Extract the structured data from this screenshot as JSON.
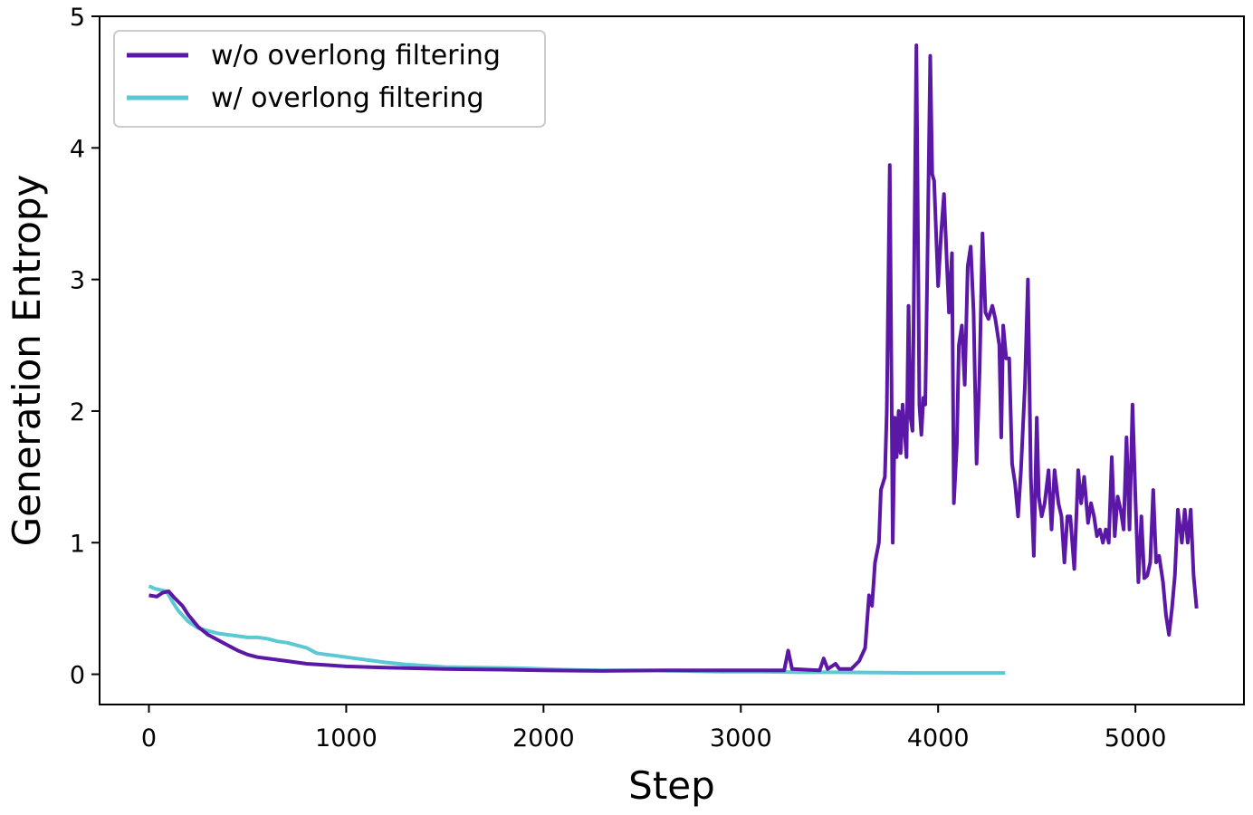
{
  "chart_data": {
    "type": "line",
    "title": "",
    "xlabel": "Step",
    "ylabel": "Generation Entropy",
    "xlim": [
      -250,
      5550
    ],
    "ylim": [
      -0.23,
      5.0
    ],
    "xticks": [
      0,
      1000,
      2000,
      3000,
      4000,
      5000
    ],
    "yticks": [
      0,
      1,
      2,
      3,
      4,
      5
    ],
    "grid": false,
    "legend_position": "top-left",
    "series": [
      {
        "name": "w/o overlong filtering",
        "color": "#5b17a6",
        "points": [
          [
            0,
            0.6
          ],
          [
            40,
            0.59
          ],
          [
            70,
            0.62
          ],
          [
            100,
            0.63
          ],
          [
            130,
            0.58
          ],
          [
            170,
            0.52
          ],
          [
            200,
            0.45
          ],
          [
            250,
            0.36
          ],
          [
            300,
            0.3
          ],
          [
            350,
            0.26
          ],
          [
            400,
            0.22
          ],
          [
            450,
            0.18
          ],
          [
            500,
            0.15
          ],
          [
            550,
            0.13
          ],
          [
            600,
            0.12
          ],
          [
            700,
            0.1
          ],
          [
            800,
            0.08
          ],
          [
            900,
            0.07
          ],
          [
            1000,
            0.06
          ],
          [
            1200,
            0.05
          ],
          [
            1500,
            0.04
          ],
          [
            1800,
            0.035
          ],
          [
            2000,
            0.03
          ],
          [
            2300,
            0.025
          ],
          [
            2600,
            0.03
          ],
          [
            2900,
            0.03
          ],
          [
            3100,
            0.03
          ],
          [
            3220,
            0.03
          ],
          [
            3240,
            0.18
          ],
          [
            3260,
            0.04
          ],
          [
            3400,
            0.03
          ],
          [
            3420,
            0.12
          ],
          [
            3440,
            0.04
          ],
          [
            3480,
            0.08
          ],
          [
            3500,
            0.04
          ],
          [
            3560,
            0.04
          ],
          [
            3600,
            0.1
          ],
          [
            3630,
            0.2
          ],
          [
            3650,
            0.6
          ],
          [
            3665,
            0.52
          ],
          [
            3680,
            0.85
          ],
          [
            3700,
            1.0
          ],
          [
            3710,
            1.4
          ],
          [
            3730,
            1.5
          ],
          [
            3740,
            2.0
          ],
          [
            3755,
            3.87
          ],
          [
            3770,
            1.0
          ],
          [
            3780,
            1.95
          ],
          [
            3790,
            1.65
          ],
          [
            3800,
            2.0
          ],
          [
            3810,
            1.68
          ],
          [
            3820,
            2.05
          ],
          [
            3840,
            1.65
          ],
          [
            3850,
            2.8
          ],
          [
            3860,
            1.95
          ],
          [
            3870,
            1.85
          ],
          [
            3890,
            4.78
          ],
          [
            3905,
            2.05
          ],
          [
            3915,
            1.82
          ],
          [
            3925,
            2.1
          ],
          [
            3935,
            2.05
          ],
          [
            3945,
            3.05
          ],
          [
            3960,
            4.7
          ],
          [
            3970,
            3.8
          ],
          [
            3980,
            3.75
          ],
          [
            4000,
            2.95
          ],
          [
            4015,
            3.35
          ],
          [
            4030,
            3.65
          ],
          [
            4045,
            3.1
          ],
          [
            4055,
            2.75
          ],
          [
            4070,
            3.2
          ],
          [
            4080,
            1.3
          ],
          [
            4095,
            1.75
          ],
          [
            4105,
            2.5
          ],
          [
            4120,
            2.65
          ],
          [
            4135,
            2.2
          ],
          [
            4150,
            3.1
          ],
          [
            4165,
            3.25
          ],
          [
            4180,
            2.75
          ],
          [
            4195,
            1.6
          ],
          [
            4210,
            2.3
          ],
          [
            4225,
            3.35
          ],
          [
            4240,
            2.75
          ],
          [
            4255,
            2.7
          ],
          [
            4275,
            2.8
          ],
          [
            4290,
            2.7
          ],
          [
            4310,
            2.5
          ],
          [
            4320,
            1.8
          ],
          [
            4330,
            2.65
          ],
          [
            4345,
            2.4
          ],
          [
            4360,
            2.4
          ],
          [
            4375,
            1.6
          ],
          [
            4390,
            1.45
          ],
          [
            4405,
            1.2
          ],
          [
            4420,
            1.55
          ],
          [
            4440,
            2.2
          ],
          [
            4455,
            3.0
          ],
          [
            4470,
            1.5
          ],
          [
            4485,
            0.9
          ],
          [
            4500,
            1.95
          ],
          [
            4510,
            1.35
          ],
          [
            4525,
            1.2
          ],
          [
            4540,
            1.3
          ],
          [
            4560,
            1.55
          ],
          [
            4575,
            1.1
          ],
          [
            4590,
            1.55
          ],
          [
            4610,
            1.3
          ],
          [
            4625,
            1.2
          ],
          [
            4640,
            0.85
          ],
          [
            4655,
            1.2
          ],
          [
            4670,
            1.2
          ],
          [
            4690,
            0.8
          ],
          [
            4710,
            1.55
          ],
          [
            4725,
            1.3
          ],
          [
            4740,
            1.5
          ],
          [
            4760,
            1.15
          ],
          [
            4775,
            1.3
          ],
          [
            4790,
            1.2
          ],
          [
            4805,
            1.05
          ],
          [
            4820,
            1.1
          ],
          [
            4835,
            1.0
          ],
          [
            4850,
            1.1
          ],
          [
            4865,
            1.0
          ],
          [
            4880,
            1.65
          ],
          [
            4895,
            1.05
          ],
          [
            4910,
            1.35
          ],
          [
            4925,
            1.25
          ],
          [
            4940,
            1.1
          ],
          [
            4955,
            1.8
          ],
          [
            4970,
            1.1
          ],
          [
            4985,
            2.05
          ],
          [
            5000,
            1.35
          ],
          [
            5015,
            0.7
          ],
          [
            5030,
            1.2
          ],
          [
            5045,
            0.73
          ],
          [
            5060,
            0.75
          ],
          [
            5075,
            0.85
          ],
          [
            5090,
            1.4
          ],
          [
            5105,
            0.85
          ],
          [
            5120,
            0.9
          ],
          [
            5140,
            0.7
          ],
          [
            5155,
            0.45
          ],
          [
            5170,
            0.3
          ],
          [
            5185,
            0.5
          ],
          [
            5200,
            0.75
          ],
          [
            5215,
            1.25
          ],
          [
            5235,
            1.0
          ],
          [
            5250,
            1.25
          ],
          [
            5265,
            1.0
          ],
          [
            5280,
            1.25
          ],
          [
            5295,
            0.75
          ],
          [
            5310,
            0.5
          ]
        ]
      },
      {
        "name": "w/ overlong filtering",
        "color": "#5bc8d4",
        "points": [
          [
            0,
            0.67
          ],
          [
            30,
            0.65
          ],
          [
            60,
            0.64
          ],
          [
            90,
            0.63
          ],
          [
            120,
            0.55
          ],
          [
            150,
            0.48
          ],
          [
            200,
            0.4
          ],
          [
            250,
            0.35
          ],
          [
            300,
            0.33
          ],
          [
            350,
            0.31
          ],
          [
            400,
            0.3
          ],
          [
            450,
            0.29
          ],
          [
            500,
            0.28
          ],
          [
            550,
            0.28
          ],
          [
            600,
            0.27
          ],
          [
            650,
            0.25
          ],
          [
            700,
            0.24
          ],
          [
            750,
            0.22
          ],
          [
            800,
            0.2
          ],
          [
            850,
            0.16
          ],
          [
            900,
            0.15
          ],
          [
            950,
            0.14
          ],
          [
            1000,
            0.13
          ],
          [
            1100,
            0.11
          ],
          [
            1200,
            0.09
          ],
          [
            1300,
            0.075
          ],
          [
            1400,
            0.065
          ],
          [
            1500,
            0.055
          ],
          [
            1700,
            0.05
          ],
          [
            1900,
            0.045
          ],
          [
            2100,
            0.035
          ],
          [
            2300,
            0.03
          ],
          [
            2500,
            0.03
          ],
          [
            2700,
            0.025
          ],
          [
            2900,
            0.02
          ],
          [
            3100,
            0.02
          ],
          [
            3300,
            0.015
          ],
          [
            3500,
            0.015
          ],
          [
            3700,
            0.012
          ],
          [
            3900,
            0.01
          ],
          [
            4100,
            0.01
          ],
          [
            4340,
            0.01
          ]
        ]
      }
    ]
  }
}
